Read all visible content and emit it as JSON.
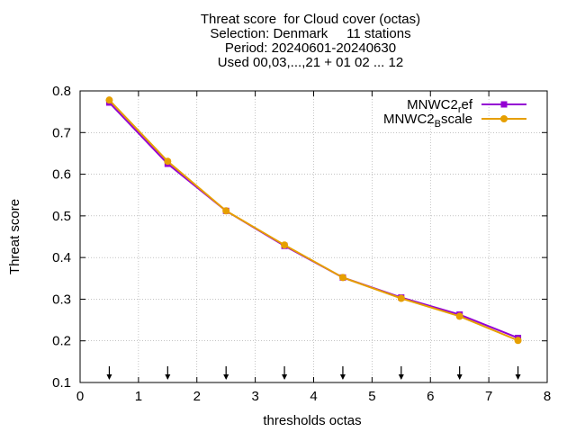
{
  "title_lines": [
    "Threat score  for Cloud cover (octas)",
    "Selection: Denmark     11 stations",
    "Period: 20240601-20240630",
    "Used 00,03,...,21 + 01 02 ... 12"
  ],
  "chart_data": {
    "type": "line",
    "xlabel": "thresholds octas",
    "ylabel": "Threat score",
    "xlim": [
      0,
      8
    ],
    "ylim": [
      0.1,
      0.8
    ],
    "xticks": [
      0,
      1,
      2,
      3,
      4,
      5,
      6,
      7,
      8
    ],
    "yticks": [
      0.1,
      0.2,
      0.3,
      0.4,
      0.5,
      0.6,
      0.7,
      0.8
    ],
    "legend_position": "top-right",
    "grid": true,
    "x": [
      0.5,
      1.5,
      2.5,
      3.5,
      4.5,
      5.5,
      6.5,
      7.5
    ],
    "series": [
      {
        "name_base": "MNWC2",
        "name_sub": "r",
        "name_rest": "ef",
        "color": "#9400d3",
        "values": [
          0.772,
          0.625,
          0.512,
          0.428,
          0.352,
          0.304,
          0.263,
          0.207
        ]
      },
      {
        "name_base": "MNWC2",
        "name_sub": "B",
        "name_rest": "scale",
        "color": "#e69f00",
        "values": [
          0.778,
          0.631,
          0.512,
          0.43,
          0.352,
          0.302,
          0.259,
          0.201
        ]
      }
    ],
    "arrows_x": [
      0.5,
      1.5,
      2.5,
      3.5,
      4.5,
      5.5,
      6.5,
      7.5
    ]
  }
}
